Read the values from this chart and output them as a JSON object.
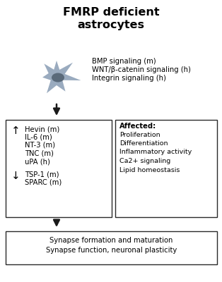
{
  "title_line1": "FMRP deficient",
  "title_line2": "astrocytes",
  "title_fontsize": 11.5,
  "bg_color": "#ffffff",
  "arrow_color": "#1a1a1a",
  "box_color": "#2a2a2a",
  "astrocyte_color": "#9aabbf",
  "astrocyte_nucleus_color": "#5a6a7a",
  "signaling_lines": [
    "BMP signaling (m)",
    "WNT/β-catenin signaling (h)",
    "Integrin signaling (h)"
  ],
  "up_items": [
    "Hevin (m)",
    "IL-6 (m)",
    "NT-3 (m)",
    "TNC (m)",
    "uPA (h)"
  ],
  "down_items": [
    "TSP-1 (m)",
    "SPARC (m)"
  ],
  "affected_title": "Affected:",
  "affected_items": [
    "Proliferation",
    "Differentiation",
    "Inflammatory activity",
    "Ca2+ signaling",
    "Lipid homeostasis"
  ],
  "bottom_lines": [
    "Synapse formation and maturation",
    "Synapse function, neuronal plasticity"
  ],
  "text_fontsize": 7.2,
  "small_fontsize": 6.8
}
